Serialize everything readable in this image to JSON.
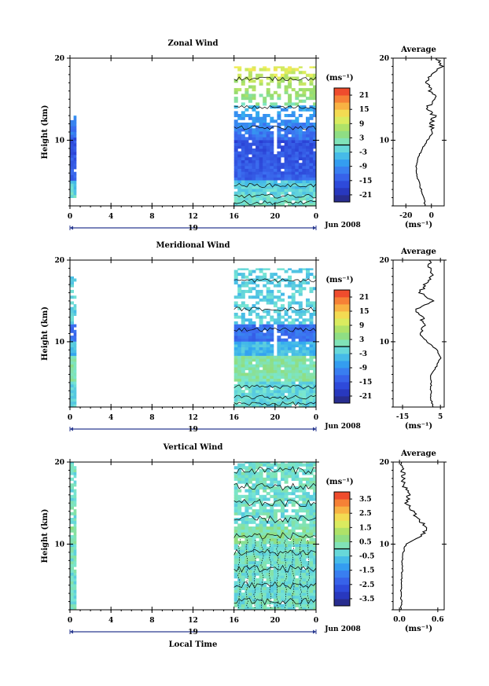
{
  "chart_data": [
    {
      "type": "heatmap",
      "title": "Zonal Wind",
      "ylabel": "Height (km)",
      "ylim": [
        2,
        20
      ],
      "yticks": [
        "10",
        "20"
      ],
      "xticks": [
        "0",
        "4",
        "8",
        "12",
        "16",
        "20",
        "0"
      ],
      "xlim": [
        0,
        24
      ],
      "day_label": "19",
      "date_label": "Jun 2008",
      "colorbar": {
        "unit": "(ms⁻¹)",
        "ticks": [
          "21",
          "15",
          "9",
          "3",
          "-3",
          "-9",
          "-15",
          "-21"
        ],
        "range": [
          -24,
          24
        ]
      },
      "data_blocks": [
        {
          "x": [
            0,
            0.6
          ],
          "y": [
            3,
            13
          ]
        },
        {
          "x": [
            16,
            24
          ],
          "y": [
            2,
            19
          ]
        }
      ],
      "profile": {
        "title": "Average",
        "xticks": [
          "-20",
          "0"
        ],
        "xlim": [
          -30,
          10
        ],
        "xlabel": "(ms⁻¹)",
        "yticks": [
          "10",
          "20"
        ],
        "heights": [
          2,
          3,
          4,
          5,
          6,
          7,
          8,
          9,
          10,
          11,
          12,
          13,
          14,
          15,
          16,
          17,
          18,
          19,
          20
        ],
        "values": [
          -5,
          -6,
          -8,
          -10,
          -12,
          -12,
          -10,
          -7,
          -3,
          1,
          0,
          2,
          -4,
          4,
          -1,
          -3,
          -1,
          8,
          4
        ]
      }
    },
    {
      "type": "heatmap",
      "title": "Meridional Wind",
      "ylabel": "Height (km)",
      "ylim": [
        2,
        20
      ],
      "yticks": [
        "10",
        "20"
      ],
      "xticks": [
        "0",
        "4",
        "8",
        "12",
        "16",
        "20",
        "0"
      ],
      "xlim": [
        0,
        24
      ],
      "day_label": "19",
      "date_label": "Jun 2008",
      "colorbar": {
        "unit": "(ms⁻¹)",
        "ticks": [
          "21",
          "15",
          "9",
          "3",
          "-3",
          "-9",
          "-15",
          "-21"
        ],
        "range": [
          -24,
          24
        ]
      },
      "data_blocks": [
        {
          "x": [
            0,
            0.6
          ],
          "y": [
            2,
            18
          ]
        },
        {
          "x": [
            16,
            24
          ],
          "y": [
            2,
            19
          ]
        }
      ],
      "profile": {
        "title": "Average",
        "xticks": [
          "-15",
          "5"
        ],
        "xlim": [
          -20,
          7
        ],
        "xlabel": "(ms⁻¹)",
        "yticks": [
          "10",
          "20"
        ],
        "heights": [
          2,
          3,
          4,
          5,
          6,
          7,
          8,
          9,
          10,
          11,
          12,
          13,
          14,
          15,
          16,
          17,
          18,
          19,
          20
        ],
        "values": [
          1,
          0,
          0,
          0,
          0,
          3,
          5,
          3,
          -2,
          -6,
          -3,
          -5,
          -8,
          2,
          -6,
          -3,
          1,
          -1,
          -1
        ]
      }
    },
    {
      "type": "heatmap",
      "title": "Vertical Wind",
      "ylabel": "Height (km)",
      "ylim": [
        2,
        20
      ],
      "yticks": [
        "10",
        "20"
      ],
      "xticks": [
        "0",
        "4",
        "8",
        "12",
        "16",
        "20",
        "0"
      ],
      "xlim": [
        0,
        24
      ],
      "xlabel": "Local Time",
      "day_label": "19",
      "date_label": "Jun 2008",
      "colorbar": {
        "unit": "(ms⁻¹)",
        "ticks": [
          "3.5",
          "2.5",
          "1.5",
          "0.5",
          "-0.5",
          "-1.5",
          "-2.5",
          "-3.5"
        ],
        "range": [
          -4,
          4
        ]
      },
      "data_blocks": [
        {
          "x": [
            0,
            0.6
          ],
          "y": [
            2,
            20
          ]
        },
        {
          "x": [
            16,
            24
          ],
          "y": [
            2,
            20
          ]
        }
      ],
      "profile": {
        "title": "Average",
        "xticks": [
          "0.0",
          "0.6"
        ],
        "xlim": [
          -0.1,
          0.7
        ],
        "xlabel": "(ms⁻¹)",
        "yticks": [
          "10",
          "20"
        ],
        "heights": [
          2,
          3,
          4,
          5,
          6,
          7,
          8,
          9,
          10,
          11,
          12,
          13,
          14,
          15,
          16,
          17,
          18,
          19,
          20
        ],
        "values": [
          0.02,
          0.03,
          0.02,
          0.04,
          0.03,
          0.05,
          0.04,
          0.06,
          0.1,
          0.35,
          0.45,
          0.3,
          0.2,
          0.12,
          0.15,
          0.08,
          0.06,
          0.05,
          0.03
        ]
      }
    }
  ]
}
